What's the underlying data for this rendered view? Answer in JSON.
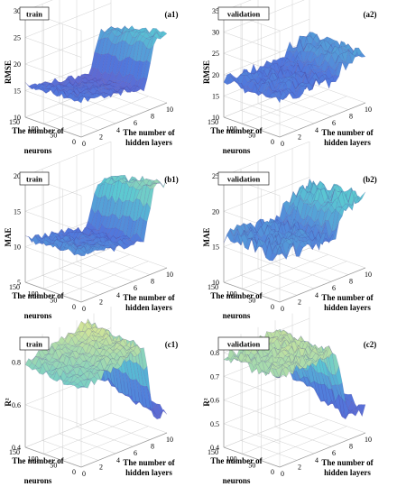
{
  "chart_data": [
    {
      "type": "surface",
      "id": "a1",
      "tag": "(a1)",
      "box_label": "train",
      "zlabel": "RMSE",
      "zticks": [
        "10",
        "15",
        "20",
        "25",
        "30"
      ],
      "zlim": [
        10,
        30
      ],
      "x_axis_label": [
        "The number of",
        "hidden layers"
      ],
      "xticks": [
        "0",
        "2",
        "4",
        "6",
        "8",
        "10"
      ],
      "y_axis_label_top": "The number of",
      "y_axis_label_bottom": "neurons",
      "yticks": [
        "0",
        "50",
        "100",
        "150"
      ],
      "surface": {
        "base": 16.5,
        "plateau": 13.5,
        "rise": 23,
        "rise_onset": 7.5,
        "noise": 0.7
      }
    },
    {
      "type": "surface",
      "id": "a2",
      "tag": "(a2)",
      "box_label": "validation",
      "zlabel": "RMSE",
      "zticks": [
        "10",
        "15",
        "20",
        "25",
        "30",
        "35"
      ],
      "zlim": [
        10,
        35
      ],
      "x_axis_label": [
        "The number of",
        "hidden layers"
      ],
      "xticks": [
        "0",
        "2",
        "4",
        "6",
        "8",
        "10"
      ],
      "y_axis_label_top": "The number of",
      "y_axis_label_bottom": "neurons",
      "yticks": [
        "0",
        "50",
        "100",
        "150"
      ],
      "surface": {
        "base": 19,
        "plateau": 18,
        "rise": 22,
        "rise_onset": 6.5,
        "noise": 1.6
      }
    },
    {
      "type": "surface",
      "id": "b1",
      "tag": "(b1)",
      "box_label": "train",
      "zlabel": "MAE",
      "zticks": [
        "5",
        "10",
        "15",
        "20"
      ],
      "zlim": [
        5,
        20
      ],
      "x_axis_label": [
        "The number of",
        "hidden layers"
      ],
      "xticks": [
        "0",
        "2",
        "4",
        "6",
        "8",
        "10"
      ],
      "y_axis_label_top": "The number of",
      "y_axis_label_bottom": "neurons",
      "yticks": [
        "0",
        "50",
        "100",
        "150"
      ],
      "surface": {
        "base": 11.5,
        "plateau": 9.5,
        "rise": 17,
        "rise_onset": 7.2,
        "noise": 0.6
      }
    },
    {
      "type": "surface",
      "id": "b2",
      "tag": "(b2)",
      "box_label": "validation",
      "zlabel": "MAE",
      "zticks": [
        "10",
        "15",
        "20",
        "25"
      ],
      "zlim": [
        10,
        25
      ],
      "x_axis_label": [
        "The number of",
        "hidden layers"
      ],
      "xticks": [
        "0",
        "2",
        "4",
        "6",
        "8",
        "10"
      ],
      "y_axis_label_top": "The number of",
      "y_axis_label_bottom": "neurons",
      "yticks": [
        "0",
        "50",
        "100",
        "150"
      ],
      "surface": {
        "base": 16.5,
        "plateau": 16,
        "rise": 20,
        "rise_onset": 6.3,
        "noise": 1.2
      }
    },
    {
      "type": "surface",
      "id": "c1",
      "tag": "(c1)",
      "box_label": "train",
      "zlabel": "R²",
      "zticks": [
        "0.4",
        "0.6",
        "0.8"
      ],
      "zlim": [
        0.4,
        0.9
      ],
      "x_axis_label": [
        "The number of",
        "hidden layers"
      ],
      "xticks": [
        "0",
        "2",
        "4",
        "6",
        "8",
        "10"
      ],
      "y_axis_label_top": "The number of",
      "y_axis_label_bottom": "neurons",
      "yticks": [
        "0",
        "50",
        "100",
        "150"
      ],
      "surface": {
        "base": 0.78,
        "plateau": 0.86,
        "rise": 0.5,
        "rise_onset": 7.3,
        "noise": 0.02
      }
    },
    {
      "type": "surface",
      "id": "c2",
      "tag": "(c2)",
      "box_label": "validation",
      "zlabel": "R²",
      "zticks": [
        "0.4",
        "0.5",
        "0.6",
        "0.7",
        "0.8"
      ],
      "zlim": [
        0.4,
        0.85
      ],
      "x_axis_label": [
        "The number of",
        "hidden layers"
      ],
      "xticks": [
        "0",
        "2",
        "4",
        "6",
        "8",
        "10"
      ],
      "y_axis_label_top": "The number of",
      "y_axis_label_bottom": "neurons",
      "yticks": [
        "0",
        "50",
        "100",
        "150"
      ],
      "surface": {
        "base": 0.78,
        "plateau": 0.8,
        "rise": 0.5,
        "rise_onset": 6.4,
        "noise": 0.025
      }
    }
  ]
}
